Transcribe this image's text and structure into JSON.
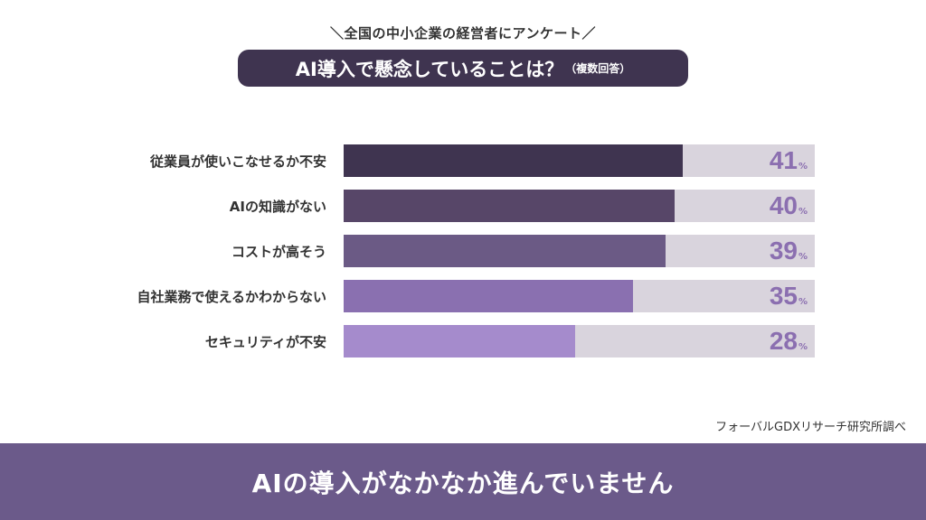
{
  "header": {
    "survey_label": "＼全国の中小企業の経営者にアンケート／",
    "title": "AI導入で懸念していることは？",
    "title_note": "（複数回答）"
  },
  "chart_data": {
    "type": "bar",
    "orientation": "horizontal",
    "categories": [
      "従業員が使いこなせるか不安",
      "AIの知識がない",
      "コストが高そう",
      "自社業務で使えるかわからない",
      "セキュリティが不安"
    ],
    "values": [
      41,
      40,
      39,
      35,
      28
    ],
    "value_labels": [
      "41",
      "40",
      "39",
      "35",
      "28"
    ],
    "unit": "%",
    "xlim": [
      0,
      57
    ],
    "bar_colors": [
      "#3f3450",
      "#574668",
      "#6b5a85",
      "#8a70b0",
      "#a58bcc"
    ],
    "track_color": "#d9d4dd",
    "value_color": "#8b6fb0"
  },
  "source": "フォーバルGDXリサーチ研究所調べ",
  "banner": {
    "text": "AIの導入がなかなか進んでいません"
  }
}
